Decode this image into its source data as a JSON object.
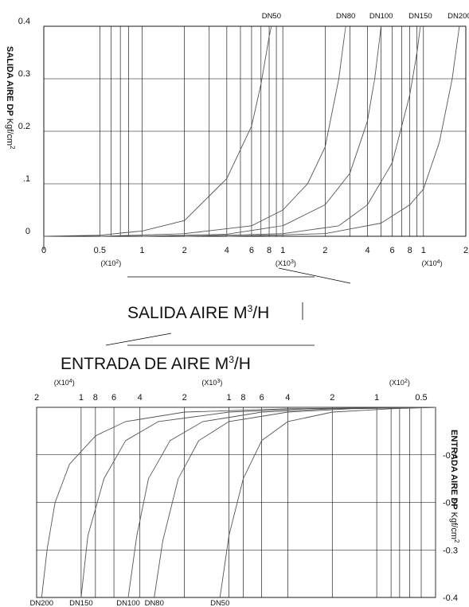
{
  "chart_data": [
    {
      "type": "line",
      "id": "outlet",
      "y_axis": {
        "label_bold": "SALIDA AIRE  DP",
        "label_unit": "Kgf/cm",
        "label_sup": "2",
        "ticks": [
          {
            "v": 0,
            "label": "0"
          },
          {
            "v": 0.1,
            "label": ".1"
          },
          {
            "v": 0.2,
            "label": "0.2"
          },
          {
            "v": 0.3,
            "label": "0.3"
          },
          {
            "v": 0.4,
            "label": "0.4"
          }
        ],
        "ylim": [
          0,
          0.4
        ]
      },
      "x_axis": {
        "scale": "log",
        "unit": "M3/H",
        "xlim": [
          20,
          20000
        ],
        "ticks": [
          {
            "v": 20,
            "label": "0"
          },
          {
            "v": 50,
            "label": "0.5"
          },
          {
            "v": 100,
            "label": "1"
          },
          {
            "v": 200,
            "label": "2"
          },
          {
            "v": 400,
            "label": "4"
          },
          {
            "v": 600,
            "label": "6"
          },
          {
            "v": 800,
            "label": "8"
          },
          {
            "v": 1000,
            "label": "1"
          },
          {
            "v": 2000,
            "label": "2"
          },
          {
            "v": 4000,
            "label": "4"
          },
          {
            "v": 6000,
            "label": "6"
          },
          {
            "v": 8000,
            "label": "8"
          },
          {
            "v": 10000,
            "label": "1"
          },
          {
            "v": 20000,
            "label": "2"
          }
        ],
        "gridlines": [
          20,
          50,
          60,
          70,
          80,
          100,
          200,
          300,
          400,
          500,
          600,
          700,
          800,
          900,
          1000,
          2000,
          3000,
          4000,
          5000,
          6000,
          7000,
          8000,
          9000,
          10000,
          20000
        ],
        "multipliers": [
          {
            "at": 60,
            "base": "(X10",
            "exp": "2",
            "close": ")"
          },
          {
            "at": 1050,
            "base": "(X10",
            "exp": "3",
            "close": ")"
          },
          {
            "at": 11500,
            "base": "(X10",
            "exp": "4",
            "close": ")"
          }
        ]
      },
      "series": [
        {
          "name": "DN50",
          "points": [
            [
              20,
              0
            ],
            [
              50,
              0.002
            ],
            [
              100,
              0.01
            ],
            [
              200,
              0.03
            ],
            [
              400,
              0.11
            ],
            [
              600,
              0.21
            ],
            [
              700,
              0.29
            ],
            [
              800,
              0.38
            ],
            [
              830,
              0.4
            ]
          ]
        },
        {
          "name": "DN80",
          "points": [
            [
              50,
              0
            ],
            [
              200,
              0.005
            ],
            [
              600,
              0.02
            ],
            [
              1000,
              0.05
            ],
            [
              1500,
              0.1
            ],
            [
              2000,
              0.17
            ],
            [
              2500,
              0.3
            ],
            [
              2800,
              0.4
            ]
          ]
        },
        {
          "name": "DN100",
          "points": [
            [
              100,
              0
            ],
            [
              400,
              0.004
            ],
            [
              1000,
              0.02
            ],
            [
              2000,
              0.06
            ],
            [
              3000,
              0.12
            ],
            [
              4000,
              0.22
            ],
            [
              4500,
              0.3
            ],
            [
              5000,
              0.4
            ]
          ]
        },
        {
          "name": "DN150",
          "points": [
            [
              200,
              0
            ],
            [
              1000,
              0.005
            ],
            [
              2500,
              0.02
            ],
            [
              4000,
              0.06
            ],
            [
              6000,
              0.14
            ],
            [
              8000,
              0.27
            ],
            [
              9000,
              0.35
            ],
            [
              9500,
              0.4
            ]
          ]
        },
        {
          "name": "DN200",
          "points": [
            [
              400,
              0
            ],
            [
              2000,
              0.005
            ],
            [
              5000,
              0.025
            ],
            [
              8000,
              0.06
            ],
            [
              10000,
              0.09
            ],
            [
              13000,
              0.18
            ],
            [
              16000,
              0.3
            ],
            [
              18000,
              0.4
            ]
          ]
        }
      ]
    },
    {
      "type": "line",
      "id": "inlet",
      "y_axis": {
        "label_bold": "ENTRADA AIRE  DP",
        "label_unit": "Kgf/cm",
        "label_sup": "2",
        "ticks": [
          {
            "v": -0.1,
            "label": "-0.1"
          },
          {
            "v": -0.2,
            "label": "-0.2"
          },
          {
            "v": -0.3,
            "label": "-0.3"
          },
          {
            "v": -0.4,
            "label": "-0.4"
          }
        ],
        "ylim": [
          -0.4,
          0
        ]
      },
      "x_axis": {
        "scale": "log",
        "reversed": true,
        "unit": "M3/H",
        "xlim": [
          20000,
          40
        ],
        "ticks": [
          {
            "v": 20000,
            "label": "2"
          },
          {
            "v": 10000,
            "label": "1"
          },
          {
            "v": 8000,
            "label": "8"
          },
          {
            "v": 6000,
            "label": "6"
          },
          {
            "v": 4000,
            "label": "4"
          },
          {
            "v": 2000,
            "label": "2"
          },
          {
            "v": 1000,
            "label": "1"
          },
          {
            "v": 800,
            "label": "8"
          },
          {
            "v": 600,
            "label": "6"
          },
          {
            "v": 400,
            "label": "4"
          },
          {
            "v": 200,
            "label": "2"
          },
          {
            "v": 100,
            "label": "1"
          },
          {
            "v": 50,
            "label": "0.5"
          }
        ],
        "gridlines": [
          10000,
          8000,
          6000,
          4000,
          2000,
          1000,
          800,
          600,
          400,
          200,
          100,
          80,
          70,
          60,
          50
        ],
        "multipliers": [
          {
            "at": 13000,
            "base": "(X10",
            "exp": "4",
            "close": ")"
          },
          {
            "at": 1300,
            "base": "(X10",
            "exp": "3",
            "close": ")"
          },
          {
            "at": 70,
            "base": "(X10",
            "exp": "2",
            "close": ")"
          }
        ]
      },
      "series": [
        {
          "name": "DN200",
          "points": [
            [
              40,
              0
            ],
            [
              400,
              -0.003
            ],
            [
              2000,
              -0.01
            ],
            [
              5000,
              -0.03
            ],
            [
              8000,
              -0.06
            ],
            [
              12000,
              -0.12
            ],
            [
              15000,
              -0.2
            ],
            [
              17000,
              -0.3
            ],
            [
              18500,
              -0.4
            ]
          ]
        },
        {
          "name": "DN150",
          "points": [
            [
              40,
              0
            ],
            [
              300,
              -0.003
            ],
            [
              1000,
              -0.01
            ],
            [
              3000,
              -0.03
            ],
            [
              5000,
              -0.07
            ],
            [
              7000,
              -0.15
            ],
            [
              9000,
              -0.27
            ],
            [
              10000,
              -0.4
            ]
          ]
        },
        {
          "name": "DN100",
          "points": [
            [
              40,
              0
            ],
            [
              200,
              -0.003
            ],
            [
              600,
              -0.01
            ],
            [
              1500,
              -0.03
            ],
            [
              2500,
              -0.07
            ],
            [
              3500,
              -0.15
            ],
            [
              4200,
              -0.27
            ],
            [
              4800,
              -0.4
            ]
          ]
        },
        {
          "name": "DN80",
          "points": [
            [
              40,
              0
            ],
            [
              150,
              -0.003
            ],
            [
              400,
              -0.01
            ],
            [
              1000,
              -0.03
            ],
            [
              1600,
              -0.07
            ],
            [
              2200,
              -0.15
            ],
            [
              2800,
              -0.28
            ],
            [
              3200,
              -0.4
            ]
          ]
        },
        {
          "name": "DN50",
          "points": [
            [
              40,
              0
            ],
            [
              80,
              -0.003
            ],
            [
              200,
              -0.01
            ],
            [
              400,
              -0.03
            ],
            [
              600,
              -0.07
            ],
            [
              800,
              -0.15
            ],
            [
              1000,
              -0.27
            ],
            [
              1150,
              -0.4
            ]
          ]
        }
      ]
    }
  ],
  "labels": {
    "outlet_title": "SALIDA AIRE M",
    "outlet_title_sup": "3",
    "outlet_title_tail": "/H",
    "inlet_title": "ENTRADA DE AIRE M",
    "inlet_title_sup": "3",
    "inlet_title_tail": "/H"
  },
  "colors": {
    "line": "#555555",
    "grid": "#000000",
    "text": "#111111"
  }
}
